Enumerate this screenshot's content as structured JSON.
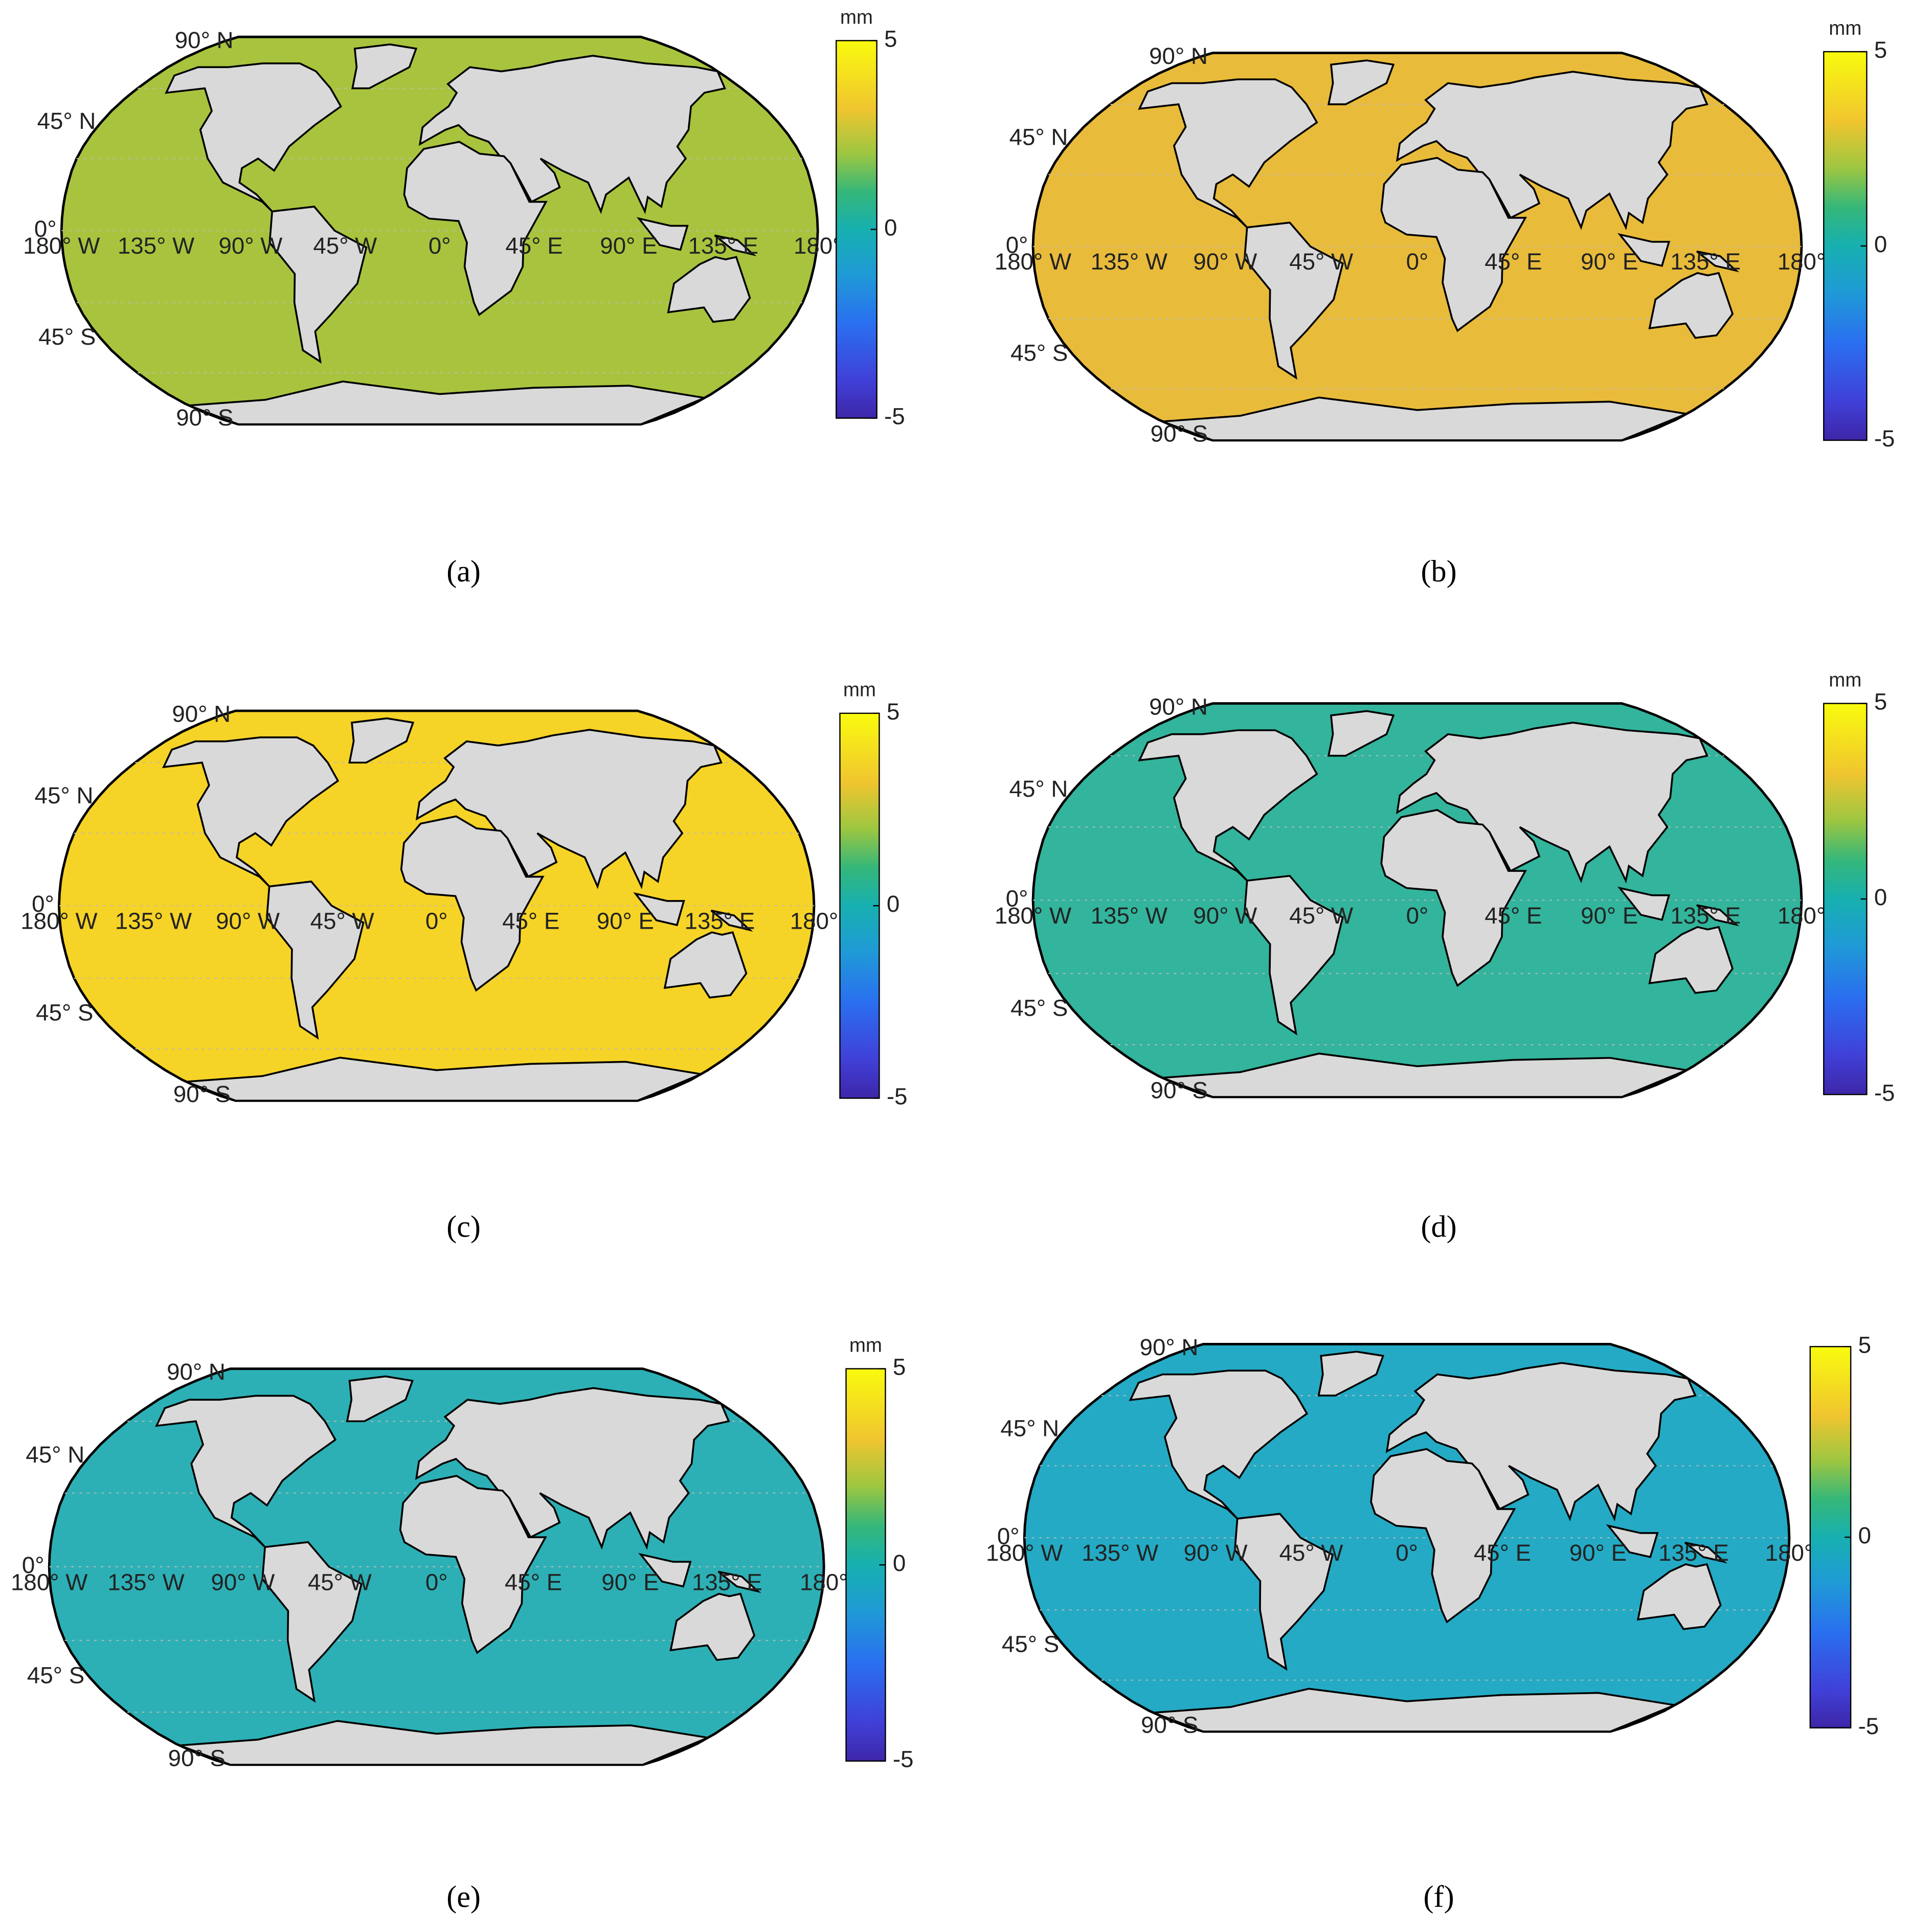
{
  "panels": [
    {
      "label": "(a)",
      "color": "#a8c43e",
      "colorbar": {
        "unit": "mm",
        "lim": [
          -5,
          5
        ],
        "ticks": [
          5,
          0,
          -5
        ]
      }
    },
    {
      "label": "(b)",
      "color": "#e9bb3b",
      "colorbar": {
        "unit": "mm",
        "lim": [
          -5,
          5
        ],
        "ticks": [
          5,
          0,
          -5
        ]
      }
    },
    {
      "label": "(c)",
      "color": "#f6d327",
      "colorbar": {
        "unit": "mm",
        "lim": [
          -5,
          5
        ],
        "ticks": [
          5,
          0,
          -5
        ]
      }
    },
    {
      "label": "(d)",
      "color": "#33b49c",
      "colorbar": {
        "unit": "mm",
        "lim": [
          -5,
          5
        ],
        "ticks": [
          5,
          0,
          -5
        ]
      }
    },
    {
      "label": "(e)",
      "color": "#2cb0b5",
      "colorbar": {
        "unit": "mm",
        "lim": [
          -5,
          5
        ],
        "ticks": [
          5,
          0,
          -5
        ]
      }
    },
    {
      "label": "(f)",
      "color": "#24aac4",
      "colorbar": {
        "lim": [
          -5,
          5
        ],
        "ticks": [
          5,
          0,
          -5
        ]
      }
    }
  ],
  "lat_ticks": [
    {
      "value": 90,
      "label": "90° N"
    },
    {
      "value": 45,
      "label": "45° N"
    },
    {
      "value": 0,
      "label": "0°"
    },
    {
      "value": -45,
      "label": "45° S"
    },
    {
      "value": -90,
      "label": "90° S"
    }
  ],
  "lon_ticks": [
    {
      "value": -180,
      "label": "180° W"
    },
    {
      "value": -135,
      "label": "135° W"
    },
    {
      "value": -90,
      "label": "90° W"
    },
    {
      "value": -45,
      "label": "45° W"
    },
    {
      "value": 0,
      "label": "0°"
    },
    {
      "value": 45,
      "label": "45° E"
    },
    {
      "value": 90,
      "label": "90° E"
    },
    {
      "value": 135,
      "label": "135° E"
    },
    {
      "value": 180,
      "label": "180°"
    }
  ]
}
